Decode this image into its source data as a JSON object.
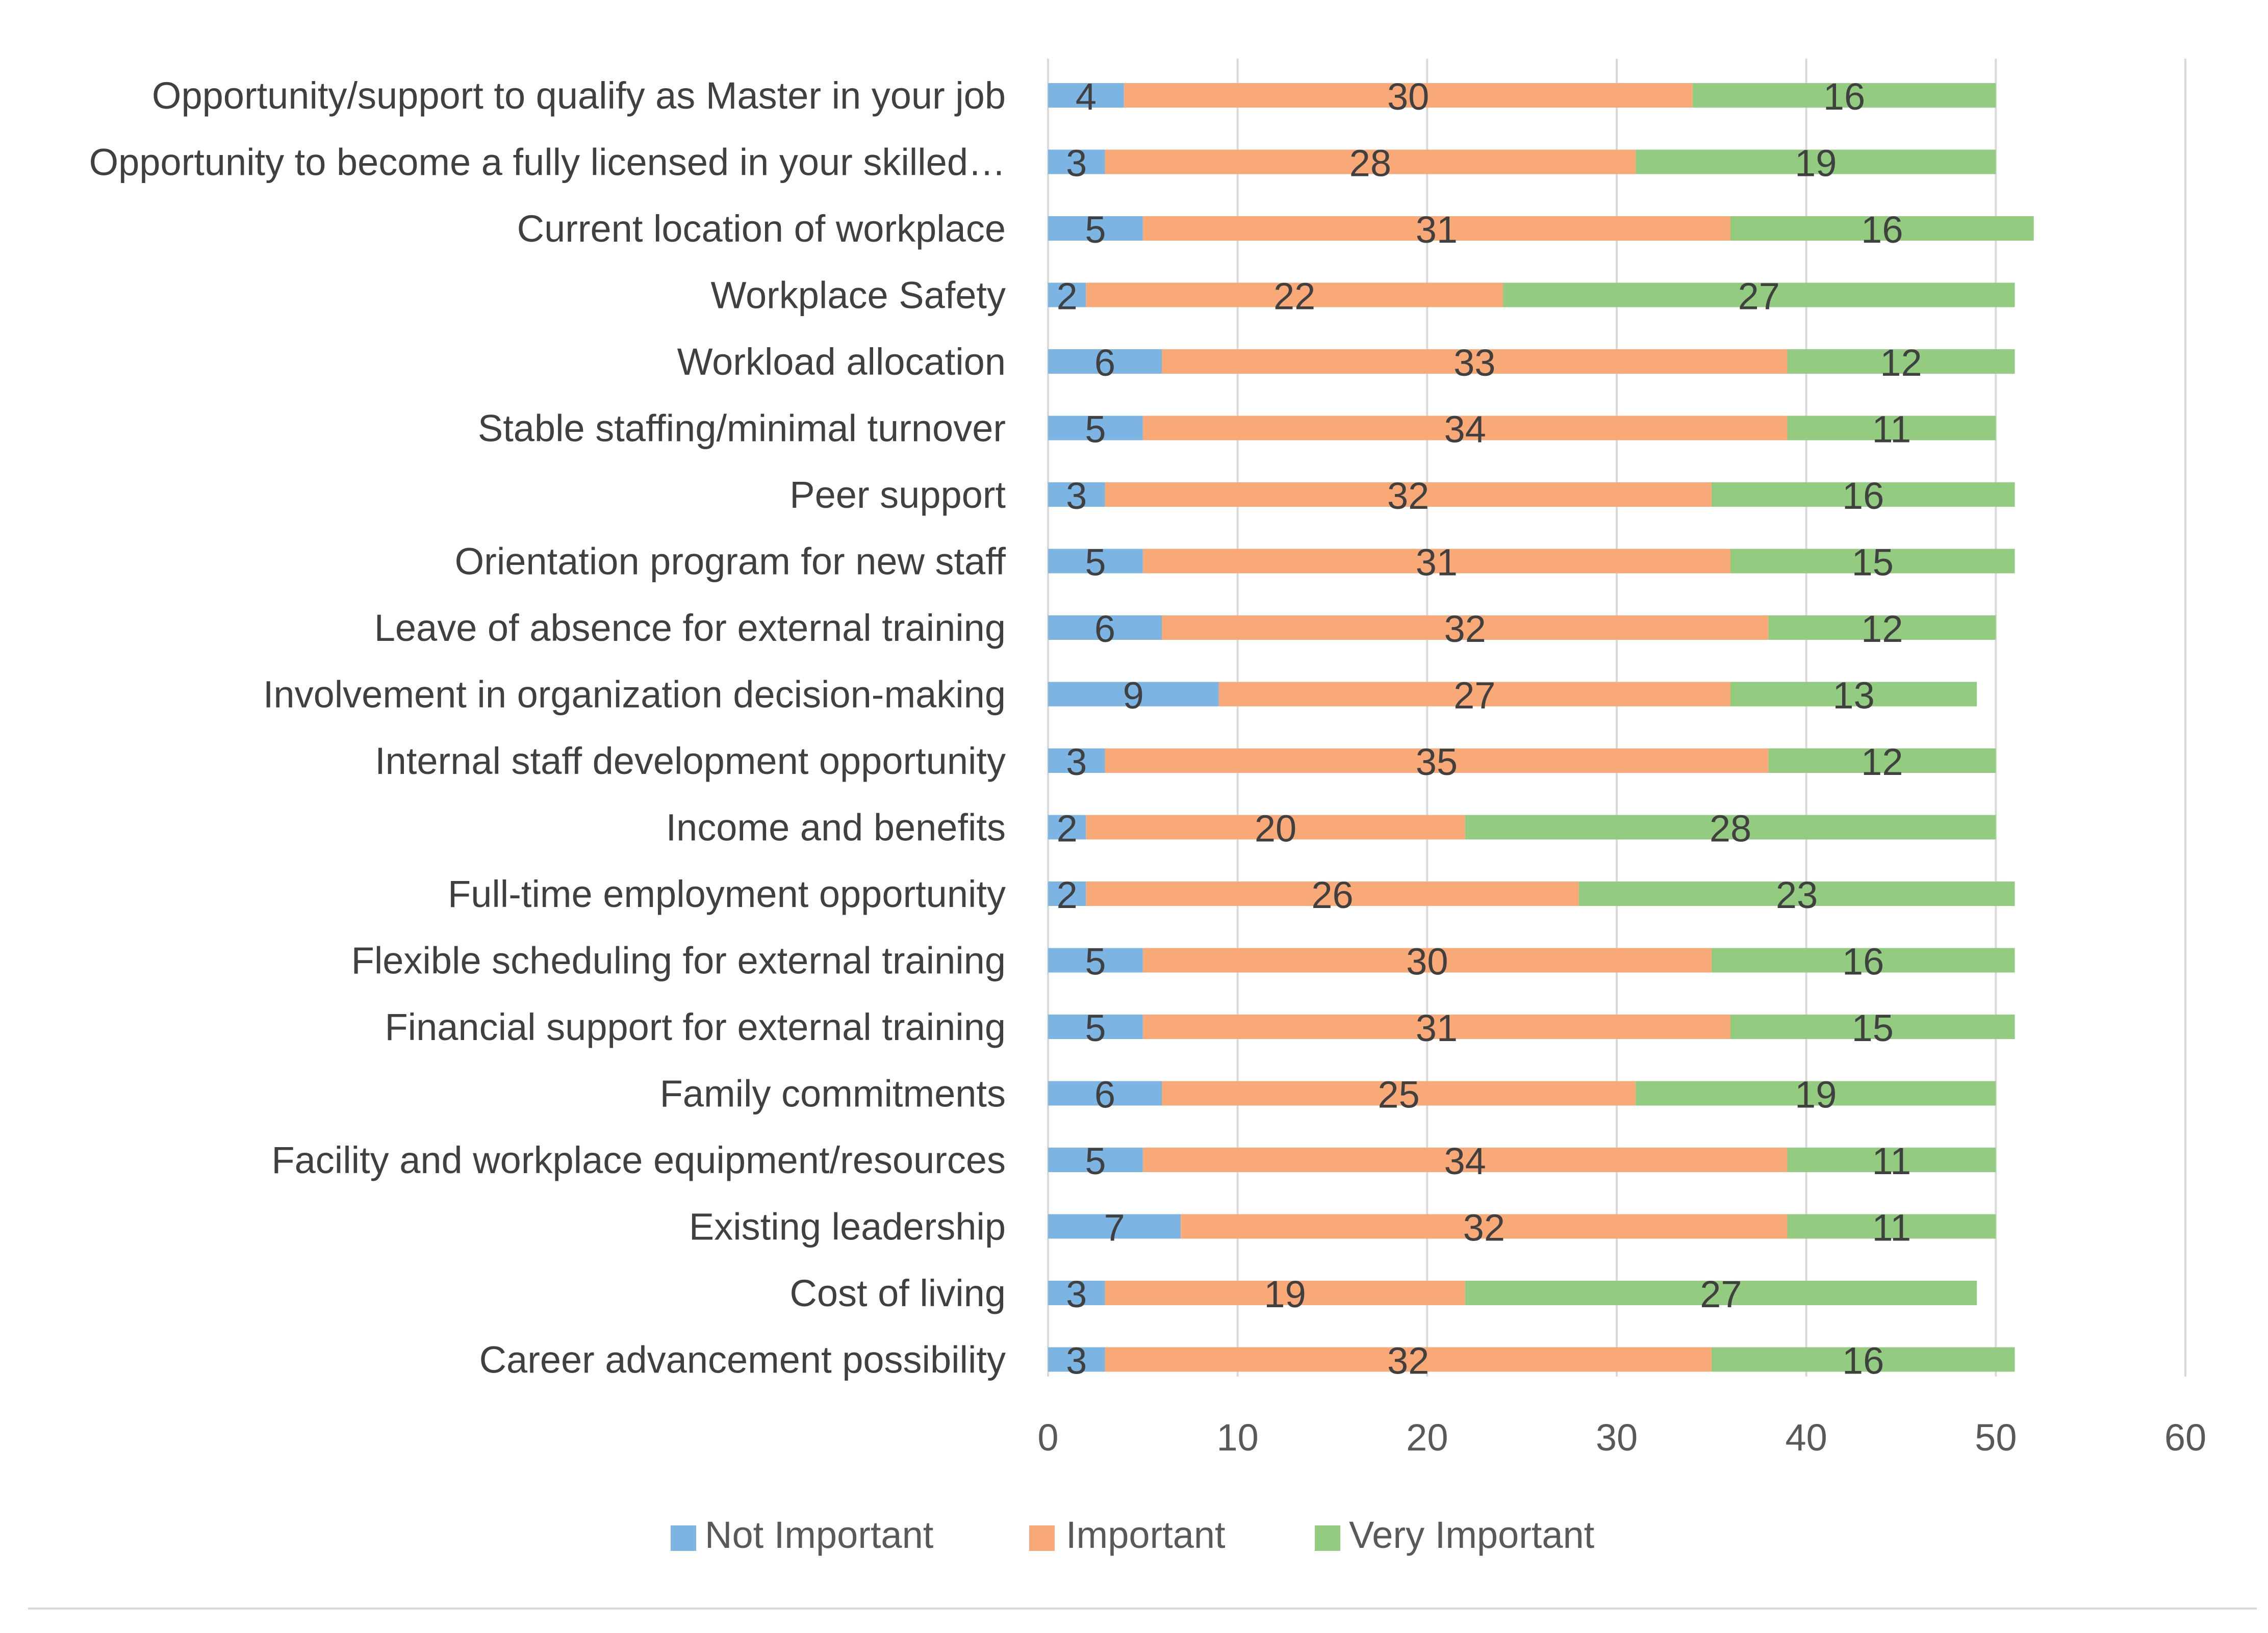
{
  "chart_data": {
    "type": "bar",
    "orientation": "horizontal",
    "stacked": true,
    "title": "",
    "xlabel": "",
    "ylabel": "",
    "xlim": [
      0,
      60
    ],
    "x_ticks": [
      0,
      10,
      20,
      30,
      40,
      50,
      60
    ],
    "grid": true,
    "legend_position": "bottom",
    "categories": [
      "Opportunity/support to qualify as Master in your job",
      "Opportunity to become a fully licensed in your skilled…",
      "Current location of workplace",
      "Workplace Safety",
      "Workload allocation",
      "Stable staffing/minimal turnover",
      "Peer support",
      "Orientation program for new staff",
      "Leave of absence for external training",
      "Involvement in organization decision-making",
      "Internal staff development opportunity",
      "Income and benefits",
      "Full-time employment opportunity",
      "Flexible scheduling for external training",
      "Financial support for external training",
      "Family commitments",
      "Facility and workplace equipment/resources",
      "Existing leadership",
      "Cost of living",
      "Career advancement possibility"
    ],
    "series": [
      {
        "name": "Not Important",
        "color": "#7CB5E4",
        "values": [
          4,
          3,
          5,
          2,
          6,
          5,
          3,
          5,
          6,
          9,
          3,
          2,
          2,
          5,
          5,
          6,
          5,
          7,
          3,
          3
        ]
      },
      {
        "name": "Important",
        "color": "#F9A878",
        "values": [
          30,
          28,
          31,
          22,
          33,
          34,
          32,
          31,
          32,
          27,
          35,
          20,
          26,
          30,
          31,
          25,
          34,
          32,
          19,
          32
        ]
      },
      {
        "name": "Very Important",
        "color": "#93CB80",
        "values": [
          16,
          19,
          16,
          27,
          12,
          11,
          16,
          15,
          12,
          13,
          12,
          28,
          23,
          16,
          15,
          19,
          11,
          11,
          27,
          16
        ]
      }
    ]
  }
}
